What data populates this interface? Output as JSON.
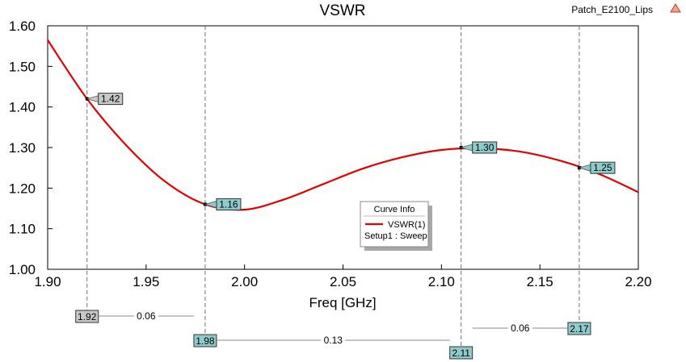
{
  "chart_data": {
    "type": "line",
    "title": "VSWR",
    "project": "Patch_E2100_Lips",
    "xlabel": "Freq [GHz]",
    "ylabel": "",
    "xlim": [
      1.9,
      2.2
    ],
    "ylim": [
      1.0,
      1.6
    ],
    "xticks": [
      "1.90",
      "1.95",
      "2.00",
      "2.05",
      "2.10",
      "2.15",
      "2.20"
    ],
    "yticks": [
      "1.00",
      "1.10",
      "1.20",
      "1.30",
      "1.40",
      "1.50",
      "1.60"
    ],
    "grid": false,
    "series": [
      {
        "name": "VSWR(1)",
        "color": "#e00000",
        "x": [
          1.9,
          1.92,
          1.94,
          1.96,
          1.98,
          2.0,
          2.02,
          2.04,
          2.06,
          2.08,
          2.1,
          2.12,
          2.14,
          2.16,
          2.18,
          2.2
        ],
        "y": [
          1.565,
          1.42,
          1.305,
          1.215,
          1.16,
          1.147,
          1.172,
          1.21,
          1.248,
          1.276,
          1.294,
          1.298,
          1.29,
          1.268,
          1.235,
          1.19
        ]
      }
    ],
    "markers": [
      {
        "x": 1.92,
        "y": 1.42,
        "label": "1.42",
        "freq_label": "1.92",
        "style": "gray"
      },
      {
        "x": 1.98,
        "y": 1.16,
        "label": "1.16",
        "freq_label": "1.98",
        "style": "teal"
      },
      {
        "x": 2.11,
        "y": 1.3,
        "label": "1.30",
        "freq_label": "2.11",
        "style": "teal"
      },
      {
        "x": 2.17,
        "y": 1.25,
        "label": "1.25",
        "freq_label": "2.17",
        "style": "teal"
      }
    ],
    "deltas": [
      {
        "from": 1.92,
        "to": 1.98,
        "label": "0.06",
        "row": 0
      },
      {
        "from": 1.98,
        "to": 2.11,
        "label": "0.13",
        "row": 1
      },
      {
        "from": 2.11,
        "to": 2.17,
        "label": "0.06",
        "row": 2
      }
    ],
    "legend": {
      "title": "Curve Info",
      "entry": "VSWR(1)",
      "subtitle": "Setup1 : Sweep",
      "placement": "center-right"
    }
  },
  "colors": {
    "curve": "#e00000",
    "marker_teal": "#8ecccc",
    "marker_gray": "#c8c8c8",
    "axis": "#000000",
    "dashed": "#707070"
  }
}
